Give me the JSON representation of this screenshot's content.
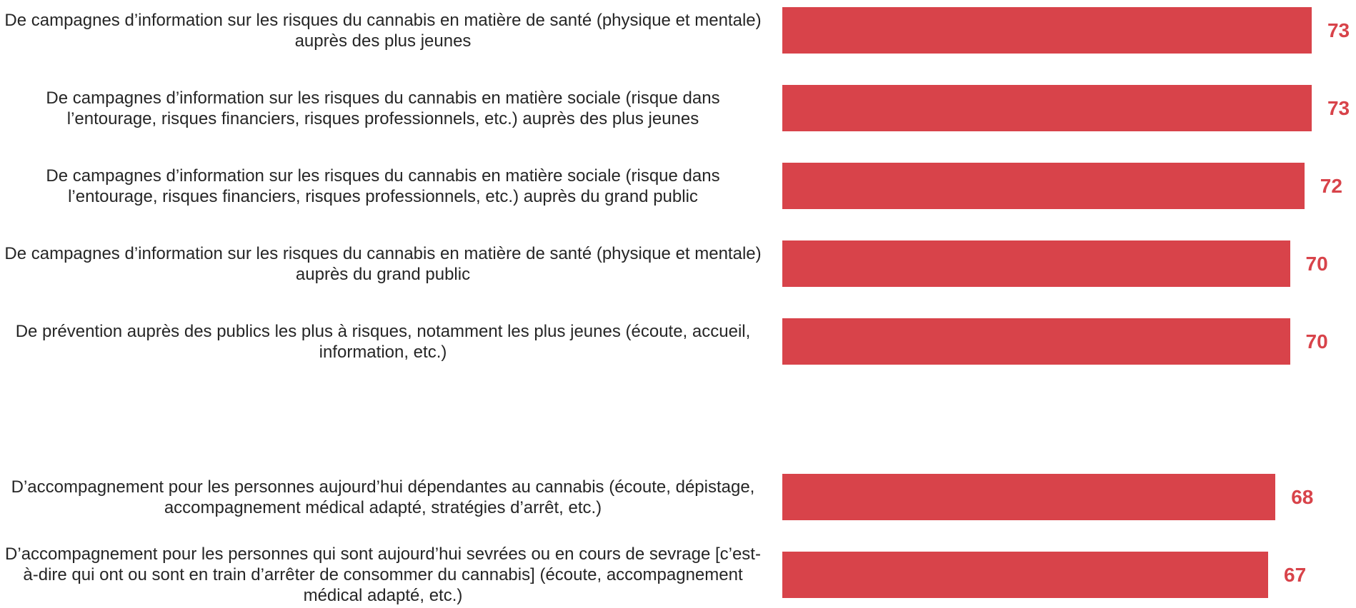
{
  "chart_data": {
    "type": "bar",
    "orientation": "horizontal",
    "color": "#d8434a",
    "categories": [
      "De campagnes d’information sur les risques du cannabis en matière de santé (physique et mentale) auprès des plus jeunes",
      "De campagnes d’information sur les risques du cannabis en matière sociale (risque dans l’entourage, risques financiers, risques professionnels, etc.) auprès des plus jeunes",
      "De campagnes d’information sur les risques du cannabis en matière sociale (risque dans l’entourage, risques financiers, risques professionnels, etc.) auprès du grand public",
      "De campagnes d’information sur les risques du cannabis en matière de santé (physique et mentale) auprès du grand public",
      "De prévention auprès des publics les plus à risques, notamment les plus jeunes (écoute, accueil, information, etc.)",
      "D’accompagnement pour les personnes aujourd’hui dépendantes au cannabis (écoute, dépistage, accompagnement médical adapté, stratégies d’arrêt, etc.)",
      "D’accompagnement pour les personnes qui sont aujourd’hui sevrées ou en cours de sevrage [c’est-à-dire qui ont ou sont en train d’arrêter de consommer du cannabis] (écoute, accompagnement médical adapté, etc.)"
    ],
    "values": [
      73,
      73,
      72,
      70,
      70,
      68,
      67
    ]
  }
}
